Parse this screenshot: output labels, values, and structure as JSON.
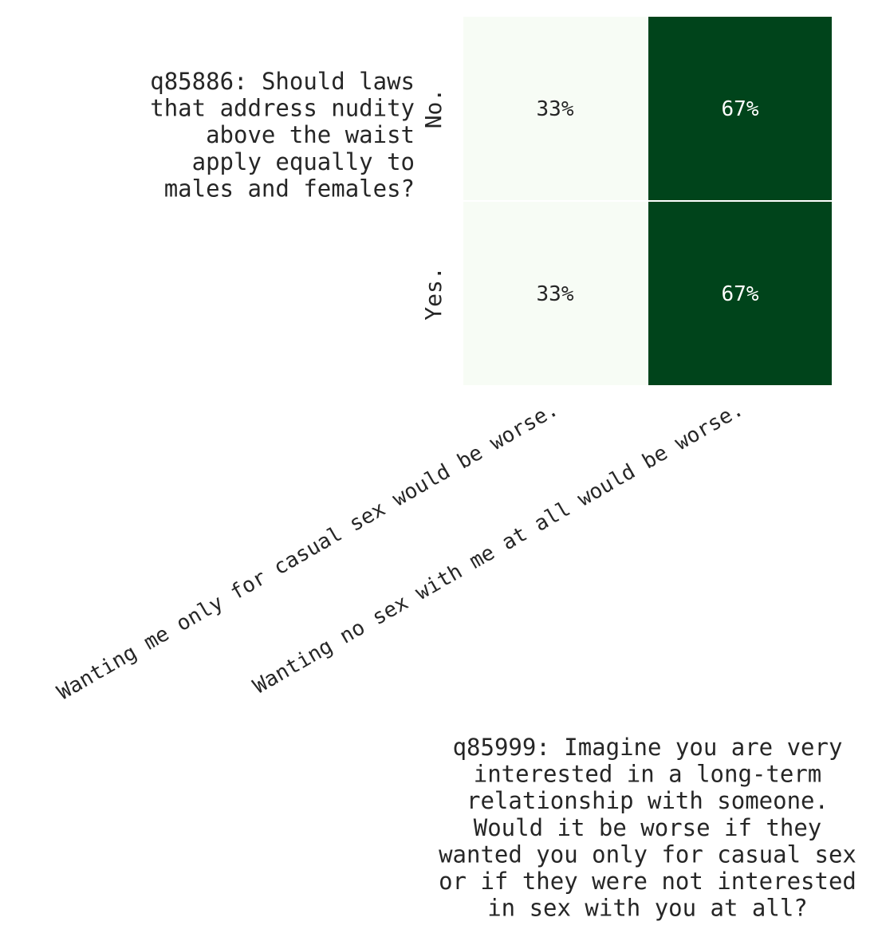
{
  "chart_data": {
    "type": "heatmap",
    "ylabel_lines": [
      "q85886: Should laws",
      "that address nudity",
      "above the waist",
      "apply equally to",
      "males and females?"
    ],
    "xlabel_lines": [
      "q85999: Imagine you are very",
      "interested in a long-term",
      "relationship with someone.",
      "Would it be worse if they",
      "wanted you only for casual sex",
      "or if they were not interested",
      "in sex with you at all?"
    ],
    "row_labels": [
      "No.",
      "Yes."
    ],
    "column_labels": [
      "Wanting me only for casual sex would be worse.",
      "Wanting no sex with me at all would be worse."
    ],
    "values": [
      [
        33,
        67
      ],
      [
        33,
        67
      ]
    ],
    "cell_labels": [
      [
        "33%",
        "67%"
      ],
      [
        "33%",
        "67%"
      ]
    ],
    "value_range": [
      0,
      100
    ],
    "colors": {
      "low": "#f7fcf5",
      "high": "#00441b",
      "text_dark": "#262626",
      "text_light": "#ffffff",
      "grid_line": "#ffffff"
    }
  }
}
